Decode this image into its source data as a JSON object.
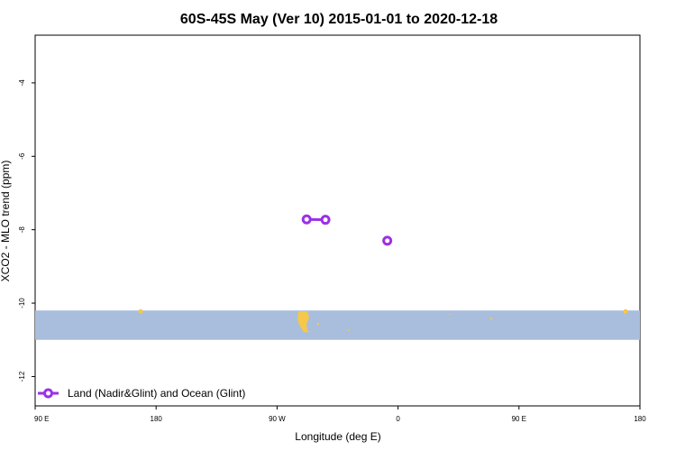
{
  "chart_data": {
    "type": "line",
    "title": "60S-45S May (Ver 10)   2015-01-01 to 2020-12-18",
    "xlabel": "Longitude (deg E)",
    "ylabel": "XCO2 - MLO trend (ppm)",
    "x_axis": {
      "range_deg_east": [
        90,
        450
      ],
      "ticks": [
        {
          "value": 90,
          "label": "90 E"
        },
        {
          "value": 180,
          "label": "180"
        },
        {
          "value": 270,
          "label": "90 W"
        },
        {
          "value": 360,
          "label": "0"
        },
        {
          "value": 450,
          "label": "90 E"
        },
        {
          "value": 540,
          "label": "180"
        }
      ],
      "plot_range": [
        90,
        540
      ]
    },
    "y_axis": {
      "range": [
        -12.8,
        -2.7
      ],
      "ticks": [
        -4,
        -6,
        -8,
        -10,
        -12
      ]
    },
    "latitude_band": {
      "y_range": [
        -11.0,
        -10.2
      ],
      "color": "#a9bddc",
      "land_color": "#f5c84a"
    },
    "series": [
      {
        "name": "Land (Nadir&Glint) and Ocean (Glint)",
        "color": "#9b30e8",
        "segments": [
          [
            {
              "x": 292,
              "y": -7.72
            },
            {
              "x": 306,
              "y": -7.73
            }
          ],
          [
            {
              "x": 352,
              "y": -8.3
            }
          ]
        ]
      }
    ],
    "legend": {
      "position": "bottom-left"
    },
    "grid": false
  }
}
